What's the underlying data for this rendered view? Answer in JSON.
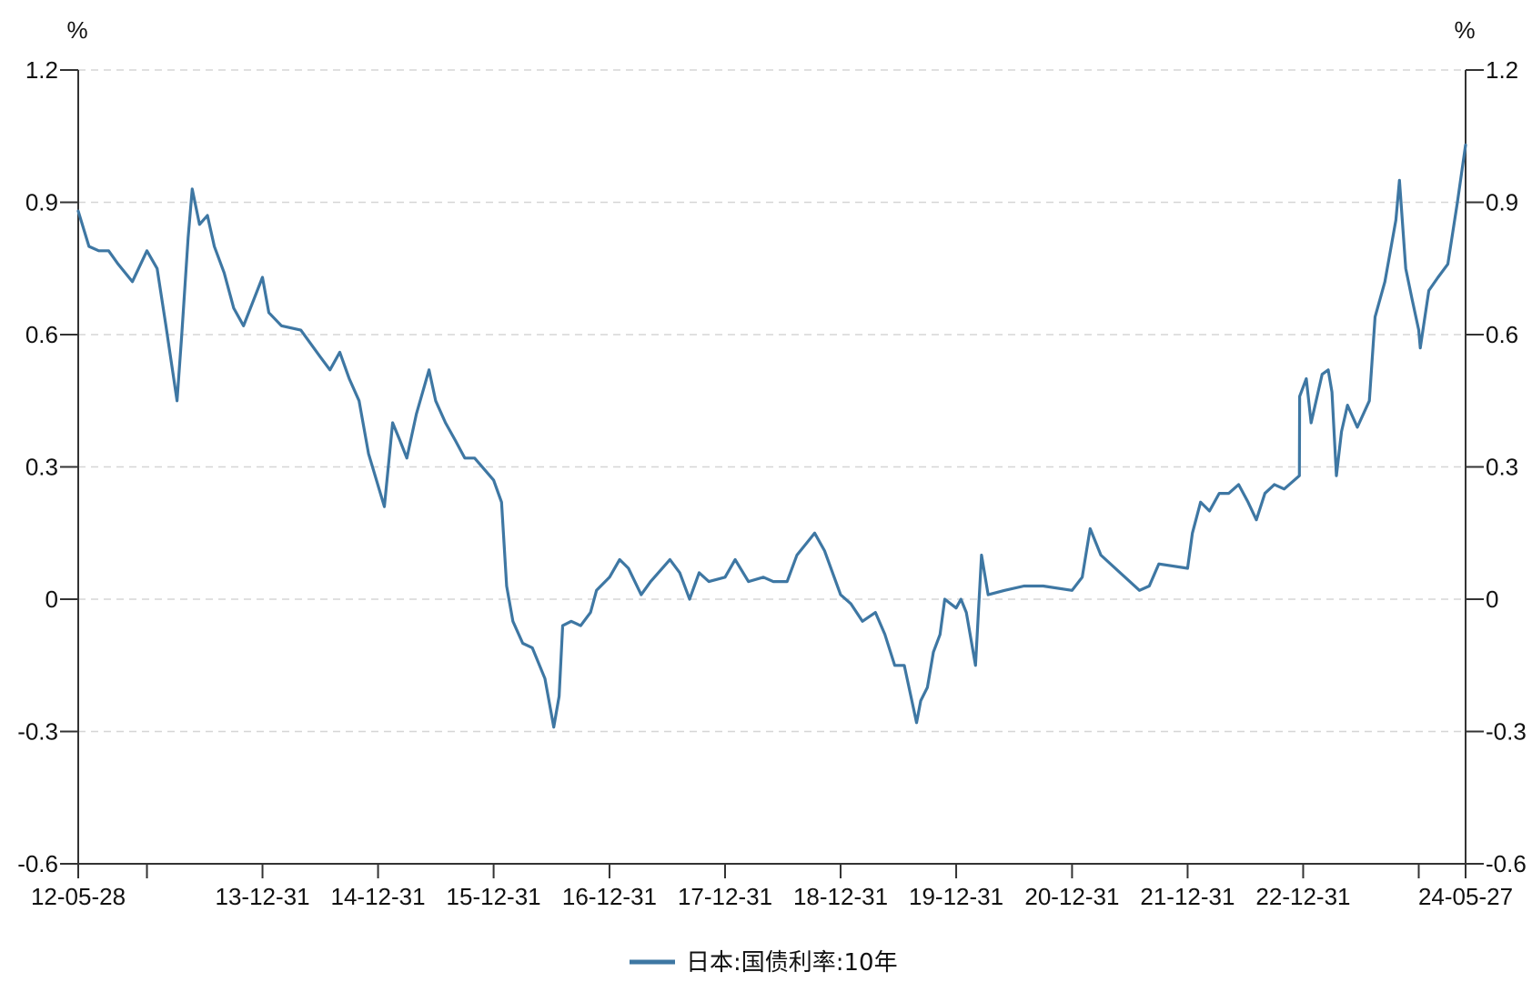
{
  "chart_data": {
    "type": "line",
    "y_unit_left": "%",
    "y_unit_right": "%",
    "ylim": [
      -0.6,
      1.2
    ],
    "y_ticks": [
      "1.2",
      "0.9",
      "0.6",
      "0.3",
      "0",
      "-0.3",
      "-0.6"
    ],
    "y_tick_values": [
      1.2,
      0.9,
      0.6,
      0.3,
      0,
      -0.3,
      -0.6
    ],
    "xlim": [
      "2012-05-28",
      "2024-05-27"
    ],
    "x_ticks": [
      {
        "date": "2012-05-28",
        "label": "12-05-28"
      },
      {
        "date": "2012-12-31",
        "label": ""
      },
      {
        "date": "2013-12-31",
        "label": "13-12-31"
      },
      {
        "date": "2014-12-31",
        "label": "14-12-31"
      },
      {
        "date": "2015-12-31",
        "label": "15-12-31"
      },
      {
        "date": "2016-12-31",
        "label": "16-12-31"
      },
      {
        "date": "2017-12-31",
        "label": "17-12-31"
      },
      {
        "date": "2018-12-31",
        "label": "18-12-31"
      },
      {
        "date": "2019-12-31",
        "label": "19-12-31"
      },
      {
        "date": "2020-12-31",
        "label": "20-12-31"
      },
      {
        "date": "2021-12-31",
        "label": "21-12-31"
      },
      {
        "date": "2022-12-31",
        "label": "22-12-31"
      },
      {
        "date": "2023-12-31",
        "label": ""
      },
      {
        "date": "2024-05-27",
        "label": "24-05-27"
      }
    ],
    "grid": "horizontal-dashed",
    "legend_position": "bottom-center",
    "series": [
      {
        "name": "日本:国债利率:10年",
        "color": "#3e77a3",
        "points": [
          [
            "2012-05-28",
            0.88
          ],
          [
            "2012-07-01",
            0.8
          ],
          [
            "2012-08-01",
            0.79
          ],
          [
            "2012-09-01",
            0.79
          ],
          [
            "2012-10-01",
            0.76
          ],
          [
            "2012-11-15",
            0.72
          ],
          [
            "2012-12-31",
            0.79
          ],
          [
            "2013-02-01",
            0.75
          ],
          [
            "2013-03-01",
            0.62
          ],
          [
            "2013-04-05",
            0.45
          ],
          [
            "2013-04-20",
            0.6
          ],
          [
            "2013-05-10",
            0.82
          ],
          [
            "2013-05-23",
            0.93
          ],
          [
            "2013-06-15",
            0.85
          ],
          [
            "2013-07-10",
            0.87
          ],
          [
            "2013-08-01",
            0.8
          ],
          [
            "2013-09-01",
            0.74
          ],
          [
            "2013-10-01",
            0.66
          ],
          [
            "2013-11-01",
            0.62
          ],
          [
            "2013-12-31",
            0.73
          ],
          [
            "2014-01-20",
            0.65
          ],
          [
            "2014-03-01",
            0.62
          ],
          [
            "2014-05-01",
            0.61
          ],
          [
            "2014-07-01",
            0.55
          ],
          [
            "2014-08-01",
            0.52
          ],
          [
            "2014-09-01",
            0.56
          ],
          [
            "2014-10-01",
            0.5
          ],
          [
            "2014-11-01",
            0.45
          ],
          [
            "2014-12-01",
            0.33
          ],
          [
            "2015-01-20",
            0.21
          ],
          [
            "2015-02-15",
            0.4
          ],
          [
            "2015-03-10",
            0.36
          ],
          [
            "2015-04-01",
            0.32
          ],
          [
            "2015-05-01",
            0.42
          ],
          [
            "2015-06-10",
            0.52
          ],
          [
            "2015-07-01",
            0.45
          ],
          [
            "2015-08-01",
            0.4
          ],
          [
            "2015-09-01",
            0.36
          ],
          [
            "2015-10-01",
            0.32
          ],
          [
            "2015-11-01",
            0.32
          ],
          [
            "2015-12-31",
            0.27
          ],
          [
            "2016-01-25",
            0.22
          ],
          [
            "2016-02-10",
            0.03
          ],
          [
            "2016-03-01",
            -0.05
          ],
          [
            "2016-04-01",
            -0.1
          ],
          [
            "2016-05-01",
            -0.11
          ],
          [
            "2016-06-10",
            -0.18
          ],
          [
            "2016-07-08",
            -0.29
          ],
          [
            "2016-07-25",
            -0.22
          ],
          [
            "2016-08-05",
            -0.06
          ],
          [
            "2016-09-01",
            -0.05
          ],
          [
            "2016-10-01",
            -0.06
          ],
          [
            "2016-11-01",
            -0.03
          ],
          [
            "2016-11-20",
            0.02
          ],
          [
            "2016-12-31",
            0.05
          ],
          [
            "2017-02-01",
            0.09
          ],
          [
            "2017-03-01",
            0.07
          ],
          [
            "2017-04-10",
            0.01
          ],
          [
            "2017-05-10",
            0.04
          ],
          [
            "2017-07-10",
            0.09
          ],
          [
            "2017-08-10",
            0.06
          ],
          [
            "2017-09-10",
            0.0
          ],
          [
            "2017-10-10",
            0.06
          ],
          [
            "2017-11-10",
            0.04
          ],
          [
            "2017-12-31",
            0.05
          ],
          [
            "2018-02-01",
            0.09
          ],
          [
            "2018-03-15",
            0.04
          ],
          [
            "2018-05-01",
            0.05
          ],
          [
            "2018-06-01",
            0.04
          ],
          [
            "2018-07-15",
            0.04
          ],
          [
            "2018-08-15",
            0.1
          ],
          [
            "2018-10-10",
            0.15
          ],
          [
            "2018-11-10",
            0.11
          ],
          [
            "2018-12-31",
            0.01
          ],
          [
            "2019-02-01",
            -0.01
          ],
          [
            "2019-03-10",
            -0.05
          ],
          [
            "2019-04-20",
            -0.03
          ],
          [
            "2019-05-20",
            -0.08
          ],
          [
            "2019-06-20",
            -0.15
          ],
          [
            "2019-07-20",
            -0.15
          ],
          [
            "2019-08-28",
            -0.28
          ],
          [
            "2019-09-10",
            -0.23
          ],
          [
            "2019-10-01",
            -0.2
          ],
          [
            "2019-10-20",
            -0.12
          ],
          [
            "2019-11-10",
            -0.08
          ],
          [
            "2019-11-25",
            0.0
          ],
          [
            "2019-12-31",
            -0.02
          ],
          [
            "2020-01-15",
            0.0
          ],
          [
            "2020-02-01",
            -0.03
          ],
          [
            "2020-03-01",
            -0.15
          ],
          [
            "2020-03-20",
            0.1
          ],
          [
            "2020-04-10",
            0.01
          ],
          [
            "2020-06-01",
            0.02
          ],
          [
            "2020-08-01",
            0.03
          ],
          [
            "2020-10-01",
            0.03
          ],
          [
            "2020-12-31",
            0.02
          ],
          [
            "2021-02-01",
            0.05
          ],
          [
            "2021-02-26",
            0.16
          ],
          [
            "2021-04-01",
            0.1
          ],
          [
            "2021-06-01",
            0.06
          ],
          [
            "2021-08-01",
            0.02
          ],
          [
            "2021-09-01",
            0.03
          ],
          [
            "2021-10-01",
            0.08
          ],
          [
            "2021-12-31",
            0.07
          ],
          [
            "2022-01-15",
            0.15
          ],
          [
            "2022-02-10",
            0.22
          ],
          [
            "2022-03-10",
            0.2
          ],
          [
            "2022-04-10",
            0.24
          ],
          [
            "2022-05-10",
            0.24
          ],
          [
            "2022-06-10",
            0.26
          ],
          [
            "2022-07-10",
            0.22
          ],
          [
            "2022-08-05",
            0.18
          ],
          [
            "2022-09-01",
            0.24
          ],
          [
            "2022-10-01",
            0.26
          ],
          [
            "2022-11-01",
            0.25
          ],
          [
            "2022-12-19",
            0.28
          ],
          [
            "2022-12-20",
            0.46
          ],
          [
            "2023-01-10",
            0.5
          ],
          [
            "2023-01-25",
            0.4
          ],
          [
            "2023-03-01",
            0.51
          ],
          [
            "2023-03-20",
            0.52
          ],
          [
            "2023-04-01",
            0.47
          ],
          [
            "2023-04-15",
            0.28
          ],
          [
            "2023-05-01",
            0.38
          ],
          [
            "2023-05-20",
            0.44
          ],
          [
            "2023-06-20",
            0.39
          ],
          [
            "2023-07-28",
            0.45
          ],
          [
            "2023-08-15",
            0.64
          ],
          [
            "2023-09-15",
            0.72
          ],
          [
            "2023-10-20",
            0.86
          ],
          [
            "2023-10-31",
            0.95
          ],
          [
            "2023-11-20",
            0.75
          ],
          [
            "2023-12-10",
            0.68
          ],
          [
            "2023-12-31",
            0.61
          ],
          [
            "2024-01-05",
            0.57
          ],
          [
            "2024-02-01",
            0.7
          ],
          [
            "2024-03-01",
            0.73
          ],
          [
            "2024-04-01",
            0.76
          ],
          [
            "2024-05-01",
            0.9
          ],
          [
            "2024-05-27",
            1.03
          ]
        ]
      }
    ]
  }
}
